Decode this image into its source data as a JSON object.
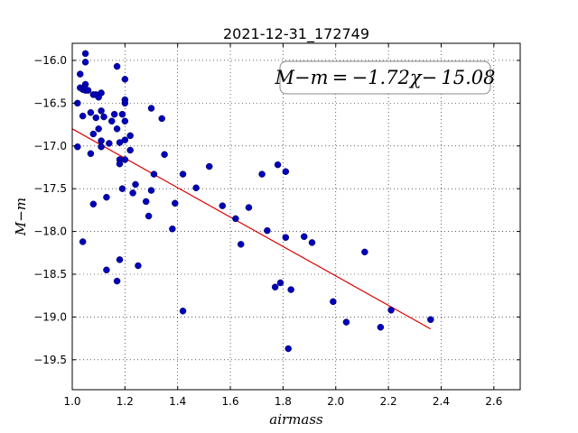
{
  "chart_data": {
    "type": "scatter",
    "title": "2021-12-31_172749",
    "xlabel": "airmass",
    "ylabel": "M−m",
    "xlim": [
      1.0,
      2.7
    ],
    "ylim": [
      -19.85,
      -15.8
    ],
    "xticks": [
      1.0,
      1.2,
      1.4,
      1.6,
      1.8,
      2.0,
      2.2,
      2.4,
      2.6
    ],
    "xtick_labels": [
      "1.0",
      "1.2",
      "1.4",
      "1.6",
      "1.8",
      "2.0",
      "2.2",
      "2.4",
      "2.6"
    ],
    "yticks": [
      -16.0,
      -16.5,
      -17.0,
      -17.5,
      -18.0,
      -18.5,
      -19.0,
      -19.5
    ],
    "ytick_labels": [
      "−16.0",
      "−16.5",
      "−17.0",
      "−17.5",
      "−18.0",
      "−18.5",
      "−19.0",
      "−19.5"
    ],
    "grid": true,
    "annotation": "M−m = −1.72χ− 15.08",
    "fit": {
      "slope": -1.72,
      "intercept": -15.08,
      "x_range": [
        1.0,
        2.36
      ],
      "color": "#dd0000"
    },
    "marker_color": "#0000bb",
    "points": [
      [
        1.02,
        -16.5
      ],
      [
        1.02,
        -17.01
      ],
      [
        1.03,
        -16.16
      ],
      [
        1.03,
        -16.32
      ],
      [
        1.04,
        -16.34
      ],
      [
        1.04,
        -16.65
      ],
      [
        1.04,
        -18.12
      ],
      [
        1.05,
        -15.92
      ],
      [
        1.05,
        -16.02
      ],
      [
        1.05,
        -16.28
      ],
      [
        1.05,
        -16.35
      ],
      [
        1.06,
        -16.35
      ],
      [
        1.07,
        -16.61
      ],
      [
        1.07,
        -17.09
      ],
      [
        1.08,
        -16.4
      ],
      [
        1.08,
        -16.86
      ],
      [
        1.08,
        -17.68
      ],
      [
        1.09,
        -16.4
      ],
      [
        1.09,
        -16.67
      ],
      [
        1.1,
        -16.43
      ],
      [
        1.1,
        -16.8
      ],
      [
        1.11,
        -16.94
      ],
      [
        1.11,
        -17.01
      ],
      [
        1.11,
        -16.38
      ],
      [
        1.11,
        -16.59
      ],
      [
        1.12,
        -16.66
      ],
      [
        1.13,
        -17.6
      ],
      [
        1.13,
        -18.45
      ],
      [
        1.14,
        -16.97
      ],
      [
        1.15,
        -16.71
      ],
      [
        1.16,
        -16.63
      ],
      [
        1.17,
        -16.07
      ],
      [
        1.17,
        -16.8
      ],
      [
        1.17,
        -18.58
      ],
      [
        1.18,
        -16.96
      ],
      [
        1.18,
        -17.16
      ],
      [
        1.18,
        -17.21
      ],
      [
        1.18,
        -18.33
      ],
      [
        1.19,
        -17.5
      ],
      [
        1.19,
        -16.63
      ],
      [
        1.2,
        -16.22
      ],
      [
        1.2,
        -16.46
      ],
      [
        1.2,
        -16.5
      ],
      [
        1.2,
        -16.71
      ],
      [
        1.2,
        -16.93
      ],
      [
        1.2,
        -17.16
      ],
      [
        1.22,
        -16.88
      ],
      [
        1.22,
        -17.05
      ],
      [
        1.23,
        -17.55
      ],
      [
        1.24,
        -17.45
      ],
      [
        1.25,
        -18.4
      ],
      [
        1.28,
        -17.65
      ],
      [
        1.29,
        -17.82
      ],
      [
        1.3,
        -16.56
      ],
      [
        1.3,
        -17.52
      ],
      [
        1.31,
        -17.33
      ],
      [
        1.34,
        -16.68
      ],
      [
        1.35,
        -17.1
      ],
      [
        1.38,
        -17.97
      ],
      [
        1.39,
        -17.67
      ],
      [
        1.42,
        -17.33
      ],
      [
        1.42,
        -18.93
      ],
      [
        1.47,
        -17.49
      ],
      [
        1.52,
        -17.24
      ],
      [
        1.57,
        -17.7
      ],
      [
        1.62,
        -17.85
      ],
      [
        1.64,
        -18.15
      ],
      [
        1.67,
        -17.72
      ],
      [
        1.72,
        -17.33
      ],
      [
        1.74,
        -17.99
      ],
      [
        1.77,
        -18.65
      ],
      [
        1.78,
        -17.22
      ],
      [
        1.79,
        -18.6
      ],
      [
        1.81,
        -18.07
      ],
      [
        1.81,
        -17.3
      ],
      [
        1.82,
        -19.37
      ],
      [
        1.83,
        -18.68
      ],
      [
        1.88,
        -18.06
      ],
      [
        1.91,
        -18.13
      ],
      [
        1.99,
        -18.82
      ],
      [
        2.04,
        -19.06
      ],
      [
        2.11,
        -18.24
      ],
      [
        2.17,
        -19.12
      ],
      [
        2.21,
        -18.92
      ],
      [
        2.36,
        -19.03
      ]
    ]
  }
}
